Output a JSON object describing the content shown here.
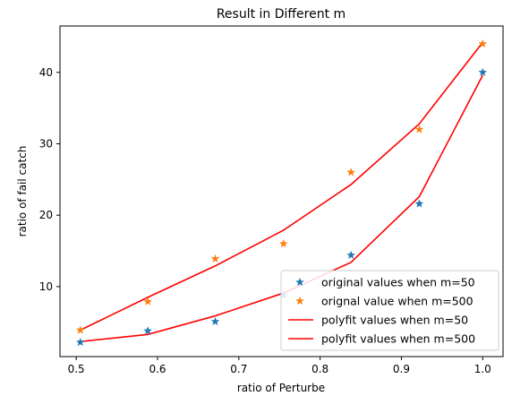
{
  "chart_data": {
    "type": "scatter",
    "title": "Result in Different m",
    "xlabel": "ratio of Perturbe",
    "ylabel": "ratio of fail catch",
    "xlim": [
      0.48,
      1.025
    ],
    "ylim": [
      0.2,
      46.5
    ],
    "xticks": [
      0.5,
      0.6,
      0.7,
      0.8,
      0.9,
      1.0
    ],
    "xtick_labels": [
      "0.5",
      "0.6",
      "0.7",
      "0.8",
      "0.9",
      "1.0"
    ],
    "yticks": [
      10,
      20,
      30,
      40
    ],
    "ytick_labels": [
      "10",
      "20",
      "30",
      "40"
    ],
    "grid": false,
    "legend_position": "lower-right",
    "series": [
      {
        "name": "original values when m=50",
        "kind": "scatter",
        "marker": "star",
        "color": "#1f77b4",
        "x": [
          0.505,
          0.588,
          0.671,
          0.755,
          0.838,
          0.922,
          1.0
        ],
        "y": [
          2.2,
          3.8,
          5.1,
          8.8,
          14.4,
          21.6,
          40.0
        ]
      },
      {
        "name": "orignal value when m=500",
        "kind": "scatter",
        "marker": "star",
        "color": "#ff7f0e",
        "x": [
          0.505,
          0.588,
          0.671,
          0.755,
          0.838,
          0.922,
          1.0
        ],
        "y": [
          3.9,
          7.9,
          13.9,
          16.0,
          26.0,
          32.0,
          44.0
        ]
      },
      {
        "name": "polyfit values when m=50",
        "kind": "line",
        "color": "#ff0000",
        "x": [
          0.505,
          0.588,
          0.671,
          0.755,
          0.838,
          0.922,
          1.0
        ],
        "y": [
          2.3,
          3.3,
          5.9,
          9.1,
          13.4,
          22.6,
          39.6
        ]
      },
      {
        "name": "polyfit values when m=500",
        "kind": "line",
        "color": "#ff0000",
        "x": [
          0.505,
          0.588,
          0.671,
          0.755,
          0.838,
          0.922,
          1.0
        ],
        "y": [
          3.9,
          8.5,
          12.9,
          17.9,
          24.3,
          32.8,
          44.2
        ]
      }
    ]
  }
}
